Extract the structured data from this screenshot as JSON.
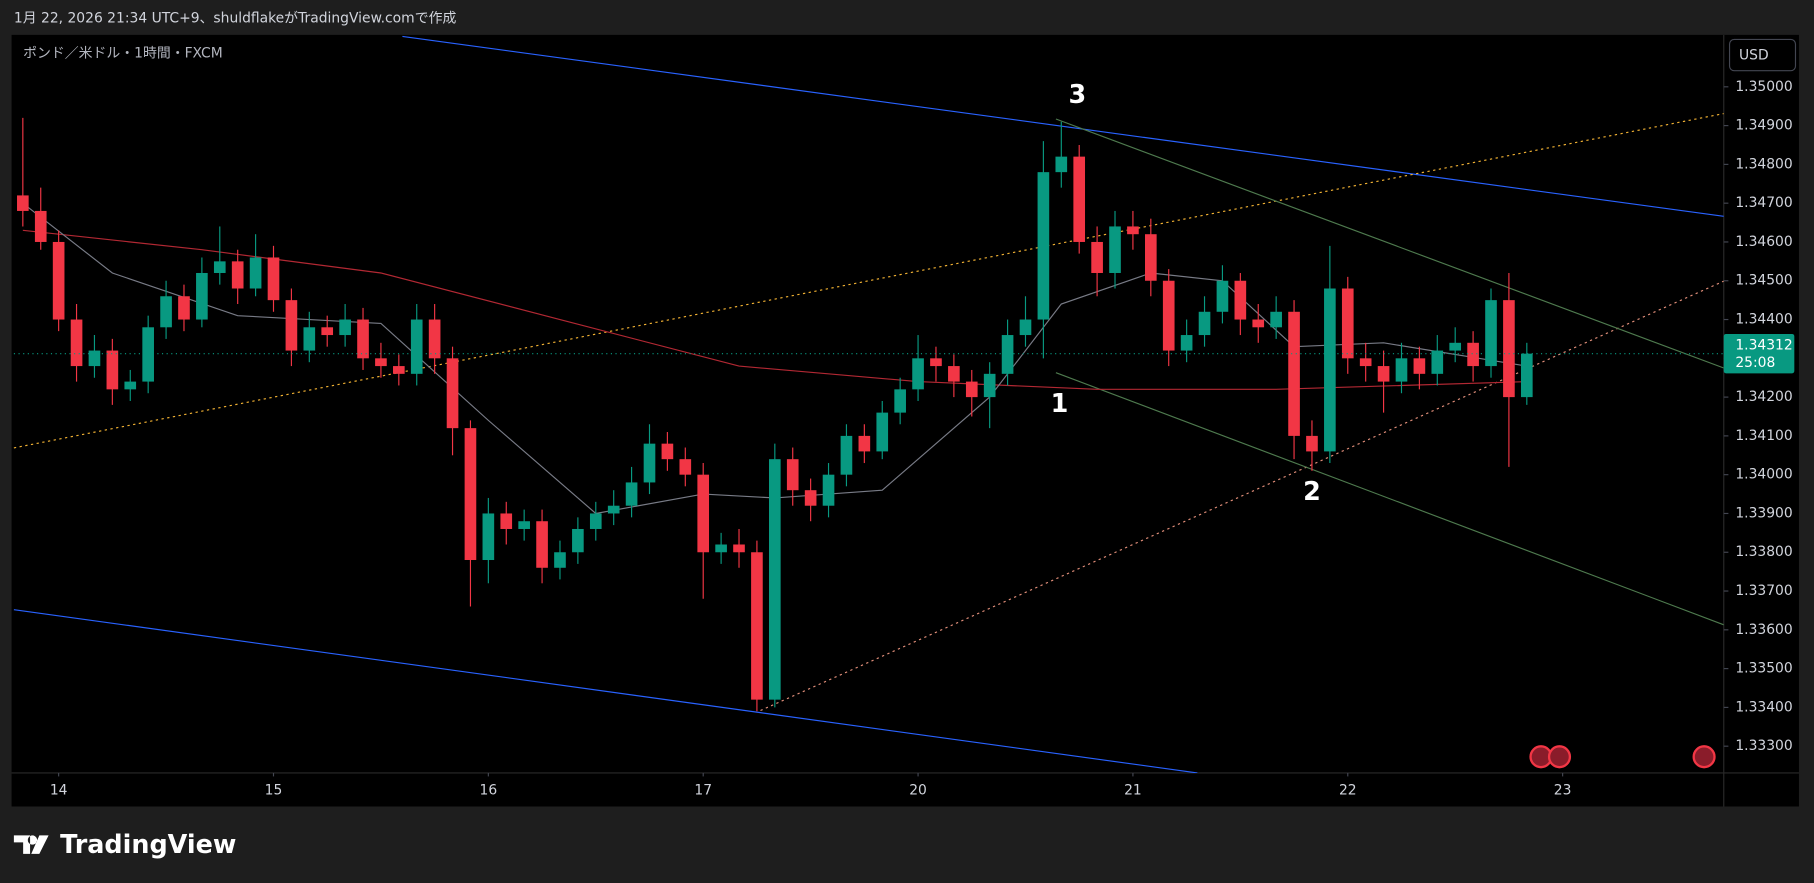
{
  "header": {
    "caption": "1月 22, 2026 21:34 UTC+9、shuldflakeがTradingView.comで作成"
  },
  "chart_data": {
    "type": "candlestick",
    "symbol": "ポンド／米ドル・1時間・FXCM",
    "currency": "USD",
    "up_color": "#089981",
    "down_color": "#f23645",
    "xlim": [
      -0.5,
      95
    ],
    "xticks": [
      {
        "value": 2,
        "label": "14"
      },
      {
        "value": 14,
        "label": "15"
      },
      {
        "value": 26,
        "label": "16"
      },
      {
        "value": 38,
        "label": "17"
      },
      {
        "value": 50,
        "label": "20"
      },
      {
        "value": 62,
        "label": "21"
      },
      {
        "value": 74,
        "label": "22"
      },
      {
        "value": 86,
        "label": "23"
      }
    ],
    "ylim": [
      1.33231,
      1.35128
    ],
    "yticks": [
      {
        "value": 1.35,
        "label": "1.35000"
      },
      {
        "value": 1.349,
        "label": "1.34900"
      },
      {
        "value": 1.348,
        "label": "1.34800"
      },
      {
        "value": 1.347,
        "label": "1.34700"
      },
      {
        "value": 1.346,
        "label": "1.34600"
      },
      {
        "value": 1.345,
        "label": "1.34500"
      },
      {
        "value": 1.344,
        "label": "1.34400"
      },
      {
        "value": 1.343,
        "label": "1.34300"
      },
      {
        "value": 1.342,
        "label": "1.34200"
      },
      {
        "value": 1.341,
        "label": "1.34100"
      },
      {
        "value": 1.34,
        "label": "1.34000"
      },
      {
        "value": 1.339,
        "label": "1.33900"
      },
      {
        "value": 1.338,
        "label": "1.33800"
      },
      {
        "value": 1.337,
        "label": "1.33700"
      },
      {
        "value": 1.336,
        "label": "1.33600"
      },
      {
        "value": 1.335,
        "label": "1.33500"
      },
      {
        "value": 1.334,
        "label": "1.33400"
      },
      {
        "value": 1.333,
        "label": "1.33300"
      }
    ],
    "candles": {
      "x": [
        0,
        1,
        2,
        3,
        4,
        5,
        6,
        7,
        8,
        9,
        10,
        11,
        12,
        13,
        14,
        15,
        16,
        17,
        18,
        19,
        20,
        21,
        22,
        23,
        24,
        25,
        26,
        27,
        28,
        29,
        30,
        31,
        32,
        33,
        34,
        35,
        36,
        37,
        38,
        39,
        40,
        41,
        42,
        43,
        44,
        45,
        46,
        47,
        48,
        49,
        50,
        51,
        52,
        53,
        54,
        55,
        56,
        57,
        58,
        59,
        60,
        61,
        62,
        63,
        64,
        65,
        66,
        67,
        68,
        69,
        70,
        71,
        72,
        73,
        74,
        75,
        76,
        77,
        78,
        79,
        80,
        81,
        82,
        83,
        84
      ],
      "open": [
        1.3472,
        1.3468,
        1.346,
        1.344,
        1.3428,
        1.3432,
        1.3422,
        1.3424,
        1.3438,
        1.3446,
        1.344,
        1.3452,
        1.3455,
        1.3448,
        1.3456,
        1.3445,
        1.3432,
        1.3438,
        1.3436,
        1.344,
        1.343,
        1.3428,
        1.3426,
        1.344,
        1.343,
        1.3412,
        1.3378,
        1.339,
        1.3386,
        1.3388,
        1.3376,
        1.338,
        1.3386,
        1.339,
        1.3392,
        1.3398,
        1.3408,
        1.3404,
        1.34,
        1.338,
        1.3382,
        1.338,
        1.3342,
        1.3404,
        1.3396,
        1.3392,
        1.34,
        1.341,
        1.3406,
        1.3416,
        1.3422,
        1.343,
        1.3428,
        1.3424,
        1.342,
        1.3426,
        1.3436,
        1.344,
        1.3478,
        1.3482,
        1.346,
        1.3452,
        1.3464,
        1.3462,
        1.345,
        1.3432,
        1.3436,
        1.3442,
        1.345,
        1.344,
        1.3438,
        1.3442,
        1.341,
        1.3406,
        1.3448,
        1.343,
        1.3428,
        1.3424,
        1.343,
        1.3426,
        1.3432,
        1.3434,
        1.3428,
        1.3445,
        1.342
      ],
      "high": [
        1.3492,
        1.3474,
        1.3463,
        1.3444,
        1.3436,
        1.3435,
        1.3427,
        1.3441,
        1.345,
        1.3449,
        1.3456,
        1.3464,
        1.3458,
        1.3462,
        1.3459,
        1.3448,
        1.3442,
        1.3441,
        1.3444,
        1.3443,
        1.3434,
        1.3431,
        1.3444,
        1.3444,
        1.3433,
        1.3414,
        1.3394,
        1.3393,
        1.3391,
        1.3391,
        1.3383,
        1.3389,
        1.3393,
        1.3396,
        1.3402,
        1.3413,
        1.3411,
        1.3407,
        1.3403,
        1.3385,
        1.3386,
        1.3383,
        1.3408,
        1.3407,
        1.3399,
        1.3403,
        1.3413,
        1.3413,
        1.3419,
        1.3425,
        1.3436,
        1.3433,
        1.3431,
        1.3427,
        1.3429,
        1.344,
        1.3446,
        1.3486,
        1.3491,
        1.3485,
        1.3464,
        1.3468,
        1.3468,
        1.3466,
        1.3453,
        1.344,
        1.3446,
        1.3454,
        1.3452,
        1.3444,
        1.3446,
        1.3445,
        1.3414,
        1.3459,
        1.3451,
        1.3434,
        1.3432,
        1.3434,
        1.3433,
        1.3436,
        1.3438,
        1.3437,
        1.3448,
        1.3452,
        1.3434
      ],
      "low": [
        1.3464,
        1.3458,
        1.3437,
        1.3424,
        1.3425,
        1.3418,
        1.3419,
        1.3421,
        1.3435,
        1.3437,
        1.3438,
        1.3449,
        1.3444,
        1.3446,
        1.3442,
        1.3428,
        1.3429,
        1.3433,
        1.3433,
        1.3427,
        1.3425,
        1.3423,
        1.3423,
        1.3426,
        1.3405,
        1.3366,
        1.3372,
        1.3382,
        1.3383,
        1.3372,
        1.3373,
        1.3377,
        1.3383,
        1.3387,
        1.3389,
        1.3395,
        1.3401,
        1.3397,
        1.3368,
        1.3377,
        1.3376,
        1.3339,
        1.334,
        1.3392,
        1.3388,
        1.3389,
        1.3397,
        1.3403,
        1.3404,
        1.3413,
        1.3419,
        1.3424,
        1.342,
        1.3415,
        1.3412,
        1.3423,
        1.3433,
        1.343,
        1.3474,
        1.3457,
        1.3446,
        1.3448,
        1.3458,
        1.3446,
        1.3428,
        1.3429,
        1.3433,
        1.3439,
        1.3436,
        1.3434,
        1.3435,
        1.3404,
        1.3401,
        1.3403,
        1.3426,
        1.3424,
        1.3416,
        1.3421,
        1.3422,
        1.3423,
        1.3429,
        1.3424,
        1.3425,
        1.3402,
        1.3418
      ],
      "close": [
        1.3468,
        1.346,
        1.344,
        1.3428,
        1.3432,
        1.3422,
        1.3424,
        1.3438,
        1.3446,
        1.344,
        1.3452,
        1.3455,
        1.3448,
        1.3456,
        1.3445,
        1.3432,
        1.3438,
        1.3436,
        1.344,
        1.343,
        1.3428,
        1.3426,
        1.344,
        1.343,
        1.3412,
        1.3378,
        1.339,
        1.3386,
        1.3388,
        1.3376,
        1.338,
        1.3386,
        1.339,
        1.3392,
        1.3398,
        1.3408,
        1.3404,
        1.34,
        1.338,
        1.3382,
        1.338,
        1.3342,
        1.3404,
        1.3396,
        1.3392,
        1.34,
        1.341,
        1.3406,
        1.3416,
        1.3422,
        1.343,
        1.3428,
        1.3424,
        1.342,
        1.3426,
        1.3436,
        1.344,
        1.3478,
        1.3482,
        1.346,
        1.3452,
        1.3464,
        1.3462,
        1.345,
        1.3432,
        1.3436,
        1.3442,
        1.345,
        1.344,
        1.3438,
        1.3442,
        1.341,
        1.3406,
        1.3448,
        1.343,
        1.3428,
        1.3424,
        1.343,
        1.3426,
        1.3432,
        1.3434,
        1.3428,
        1.3445,
        1.342,
        1.34312
      ]
    },
    "series": [
      {
        "type": "line",
        "color": "#b22833",
        "x": [
          0,
          10,
          20,
          30,
          40,
          50,
          60,
          70,
          84
        ],
        "values": [
          1.3463,
          1.3458,
          1.3452,
          1.344,
          1.3428,
          1.3424,
          1.3422,
          1.3422,
          1.3424
        ]
      },
      {
        "type": "line",
        "color": "#787b86",
        "x": [
          0,
          5,
          12,
          20,
          26,
          32,
          38,
          42,
          48,
          54,
          58,
          63,
          67,
          71,
          76,
          84
        ],
        "values": [
          1.347,
          1.3452,
          1.3441,
          1.3439,
          1.3414,
          1.339,
          1.3395,
          1.3394,
          1.3396,
          1.342,
          1.3444,
          1.3452,
          1.345,
          1.3433,
          1.3434,
          1.3428
        ]
      }
    ],
    "drawings": [
      {
        "color": "#2962ff",
        "style": "solid",
        "x": [
          21.2,
          95
        ],
        "values": [
          1.3513,
          1.34666
        ]
      },
      {
        "color": "#2962ff",
        "style": "solid",
        "x": [
          -0.5,
          65.6
        ],
        "values": [
          1.33652,
          1.33231
        ]
      },
      {
        "color": "#f2b233",
        "style": "dotted",
        "x": [
          -0.5,
          95
        ],
        "values": [
          1.34069,
          1.34931
        ]
      },
      {
        "color": "#e38f7a",
        "style": "dotted",
        "x": [
          41.2,
          95
        ],
        "values": [
          1.33392,
          1.34499
        ]
      },
      {
        "color": "#4e7a4e",
        "style": "solid",
        "x": [
          57.7,
          95
        ],
        "values": [
          1.34917,
          1.34275
        ]
      },
      {
        "color": "#4e7a4e",
        "style": "solid",
        "x": [
          57.7,
          95
        ],
        "values": [
          1.34263,
          1.33613
        ]
      }
    ],
    "annotations": [
      {
        "text": "3",
        "x": 58.9,
        "y": 1.34976
      },
      {
        "text": "1",
        "x": 57.9,
        "y": 1.3418
      },
      {
        "text": "2",
        "x": 72,
        "y": 1.33953
      }
    ],
    "last_price": 1.34312,
    "countdown": "25:08"
  },
  "footer": {
    "brand": "TradingView"
  }
}
